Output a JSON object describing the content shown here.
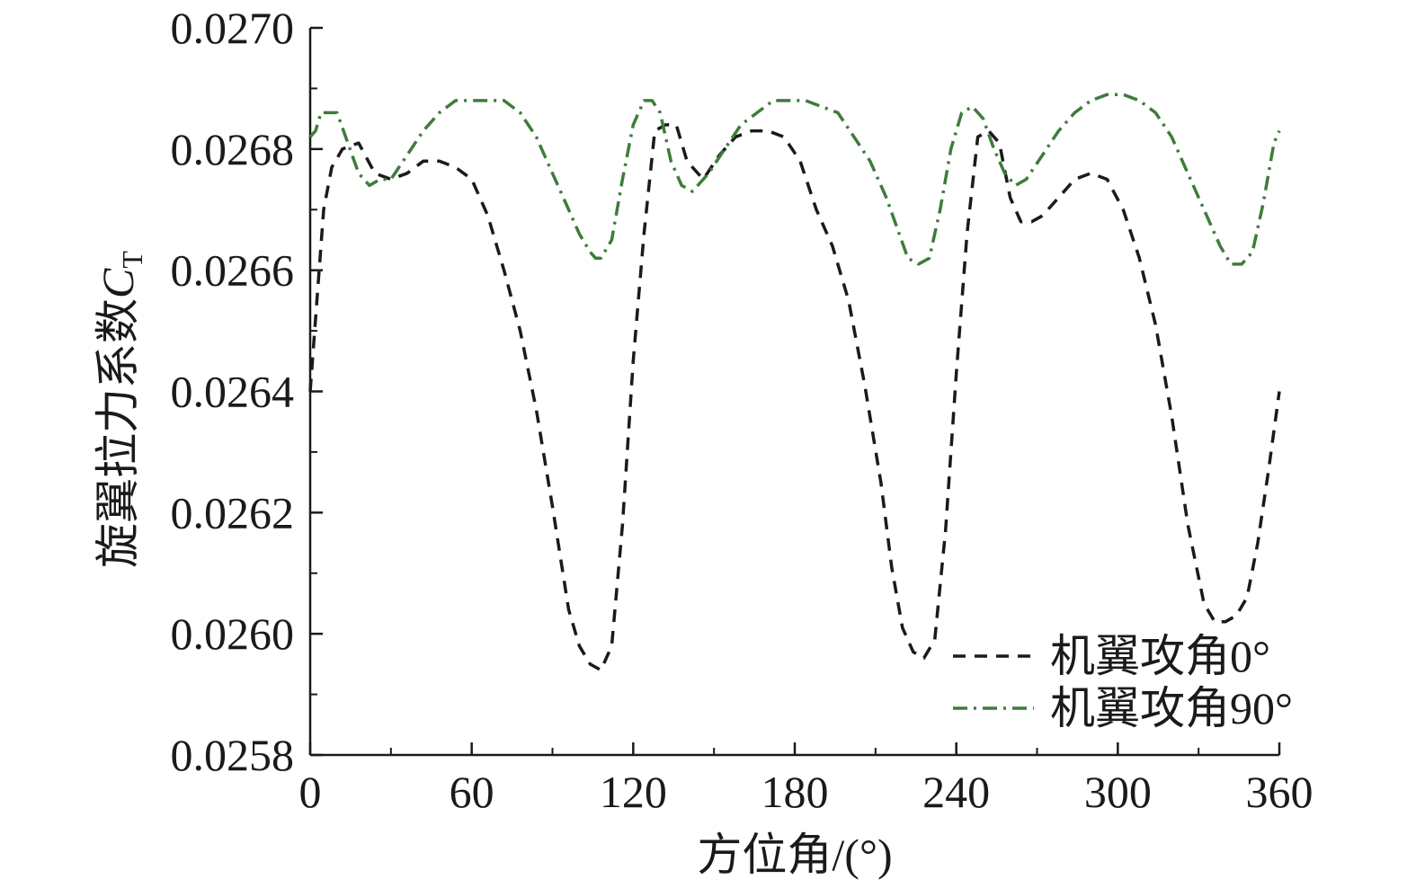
{
  "chart_data": {
    "type": "line",
    "xlabel": "方位角/(°)",
    "ylabel": "旋翼拉力系数",
    "ylabel_symbol": "C",
    "ylabel_subscript": "T",
    "xlim": [
      0,
      360
    ],
    "ylim": [
      0.0258,
      0.027
    ],
    "x_ticks": [
      0,
      60,
      120,
      180,
      240,
      300,
      360
    ],
    "x_tick_labels": [
      "0",
      "60",
      "120",
      "180",
      "240",
      "300",
      "360"
    ],
    "y_ticks": [
      0.0258,
      0.026,
      0.0262,
      0.0264,
      0.0266,
      0.0268,
      0.027
    ],
    "y_tick_labels": [
      "0.0258",
      "0.0260",
      "0.0262",
      "0.0264",
      "0.0266",
      "0.0268",
      "0.0270"
    ],
    "grid": false,
    "legend_position": "bottom-right",
    "series": [
      {
        "name": "机翼攻角0°",
        "color": "#1a1a1a",
        "dash": "dashed",
        "x": [
          0,
          2,
          5,
          8,
          12,
          18,
          24,
          30,
          36,
          42,
          48,
          54,
          60,
          66,
          72,
          78,
          84,
          90,
          96,
          100,
          104,
          108,
          112,
          116,
          120,
          124,
          128,
          132,
          136,
          140,
          146,
          152,
          158,
          164,
          170,
          176,
          182,
          188,
          194,
          200,
          206,
          212,
          216,
          220,
          224,
          228,
          232,
          236,
          240,
          244,
          248,
          252,
          256,
          260,
          264,
          268,
          272,
          278,
          284,
          290,
          296,
          302,
          308,
          314,
          320,
          326,
          332,
          336,
          340,
          344,
          348,
          352,
          356,
          360
        ],
        "y": [
          0.0264,
          0.02652,
          0.0267,
          0.02677,
          0.0268,
          0.02681,
          0.02676,
          0.02675,
          0.02676,
          0.02678,
          0.02678,
          0.02677,
          0.02675,
          0.02669,
          0.0266,
          0.0265,
          0.02637,
          0.02621,
          0.02604,
          0.02598,
          0.02595,
          0.02594,
          0.02598,
          0.02618,
          0.02645,
          0.02666,
          0.02683,
          0.02684,
          0.02684,
          0.02678,
          0.02675,
          0.02679,
          0.02682,
          0.02683,
          0.02683,
          0.02682,
          0.02678,
          0.0267,
          0.02664,
          0.02655,
          0.02641,
          0.02625,
          0.02611,
          0.02601,
          0.02597,
          0.02596,
          0.02599,
          0.02617,
          0.02643,
          0.02666,
          0.02682,
          0.02683,
          0.02681,
          0.02672,
          0.02668,
          0.02668,
          0.02669,
          0.02672,
          0.02675,
          0.02676,
          0.02675,
          0.0267,
          0.02662,
          0.02651,
          0.02636,
          0.02618,
          0.02605,
          0.02602,
          0.02602,
          0.02603,
          0.02606,
          0.02615,
          0.02627,
          0.0264
        ]
      },
      {
        "name": "机翼攻角90°",
        "color": "#3e7c3a",
        "dash": "dashdot",
        "x": [
          0,
          2,
          4,
          6,
          10,
          14,
          18,
          22,
          26,
          30,
          36,
          42,
          48,
          54,
          60,
          66,
          72,
          78,
          84,
          90,
          96,
          100,
          104,
          106,
          108,
          112,
          116,
          120,
          124,
          127,
          130,
          134,
          138,
          142,
          148,
          154,
          160,
          166,
          172,
          178,
          184,
          190,
          196,
          202,
          208,
          214,
          218,
          222,
          226,
          230,
          234,
          238,
          242,
          246,
          250,
          254,
          258,
          262,
          266,
          272,
          278,
          284,
          290,
          296,
          302,
          308,
          314,
          320,
          326,
          332,
          338,
          342,
          346,
          350,
          354,
          358,
          360
        ],
        "y": [
          0.02682,
          0.02683,
          0.02686,
          0.02686,
          0.02686,
          0.02681,
          0.02676,
          0.02674,
          0.02675,
          0.02675,
          0.02679,
          0.02683,
          0.02686,
          0.02688,
          0.02688,
          0.02688,
          0.02688,
          0.02686,
          0.02682,
          0.02676,
          0.0267,
          0.02666,
          0.02663,
          0.02662,
          0.02662,
          0.02665,
          0.02675,
          0.02684,
          0.02688,
          0.02688,
          0.02686,
          0.02678,
          0.02674,
          0.02673,
          0.02676,
          0.0268,
          0.02684,
          0.02686,
          0.02688,
          0.02688,
          0.02688,
          0.02687,
          0.02686,
          0.02682,
          0.02678,
          0.02672,
          0.02667,
          0.02662,
          0.02661,
          0.02662,
          0.0267,
          0.0268,
          0.02686,
          0.02687,
          0.02685,
          0.0268,
          0.02676,
          0.02674,
          0.02675,
          0.02679,
          0.02683,
          0.02686,
          0.02688,
          0.02689,
          0.02689,
          0.02688,
          0.02686,
          0.02682,
          0.02676,
          0.0267,
          0.02664,
          0.02661,
          0.02661,
          0.02663,
          0.02671,
          0.02681,
          0.02683
        ]
      }
    ]
  }
}
